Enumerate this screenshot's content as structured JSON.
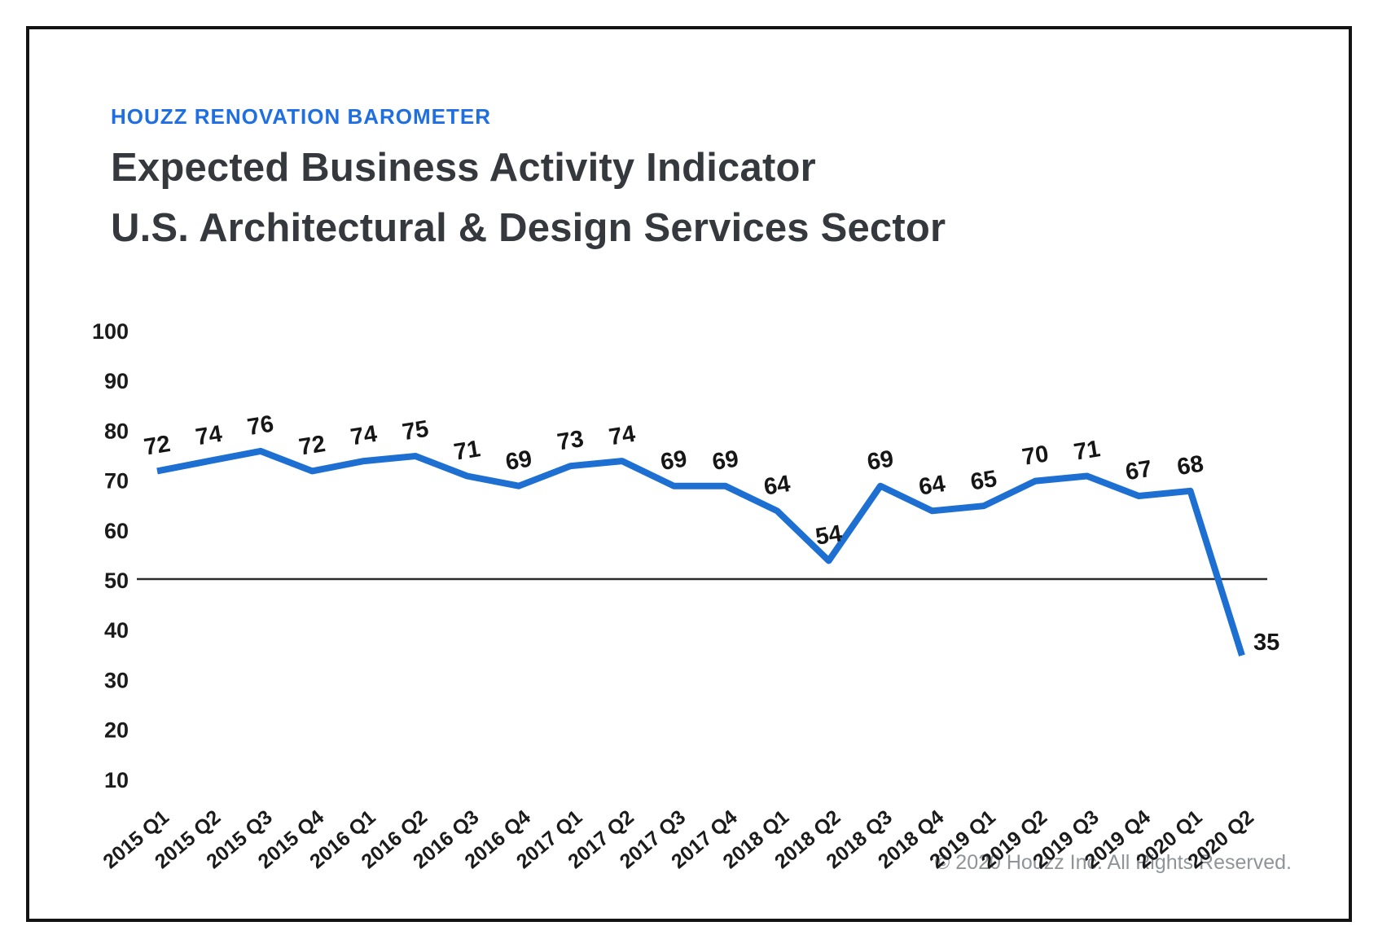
{
  "header": {
    "eyebrow": "HOUZZ RENOVATION BAROMETER",
    "title_line1": "Expected Business Activity Indicator",
    "title_line2": "U.S. Architectural & Design Services Sector"
  },
  "footer": {
    "copyright": "© 2020 Houzz Inc. All Rights Reserved."
  },
  "chart_data": {
    "type": "line",
    "title": "Expected Business Activity Indicator",
    "subtitle": "U.S. Architectural & Design Services Sector",
    "xlabel": "",
    "ylabel": "",
    "categories": [
      "2015 Q1",
      "2015 Q2",
      "2015 Q3",
      "2015 Q4",
      "2016 Q1",
      "2016 Q2",
      "2016 Q3",
      "2016 Q4",
      "2017 Q1",
      "2017 Q2",
      "2017 Q3",
      "2017 Q4",
      "2018 Q1",
      "2018 Q2",
      "2018 Q3",
      "2018 Q4",
      "2019 Q1",
      "2019 Q2",
      "2019 Q3",
      "2019 Q4",
      "2020 Q1",
      "2020 Q2"
    ],
    "values": [
      72,
      74,
      76,
      72,
      74,
      75,
      71,
      69,
      73,
      74,
      69,
      69,
      64,
      54,
      69,
      64,
      65,
      70,
      71,
      67,
      68,
      35
    ],
    "yticks": [
      100,
      90,
      80,
      70,
      60,
      50,
      40,
      30,
      20,
      10
    ],
    "ylim": [
      10,
      100
    ],
    "reference_line": 50,
    "grid": false,
    "legend": false,
    "data_labels": true,
    "line_color": "#1e6fd2",
    "reference_line_color": "#2b2b2b",
    "label_color": "#161616",
    "accent_color": "#1f6fe0"
  }
}
